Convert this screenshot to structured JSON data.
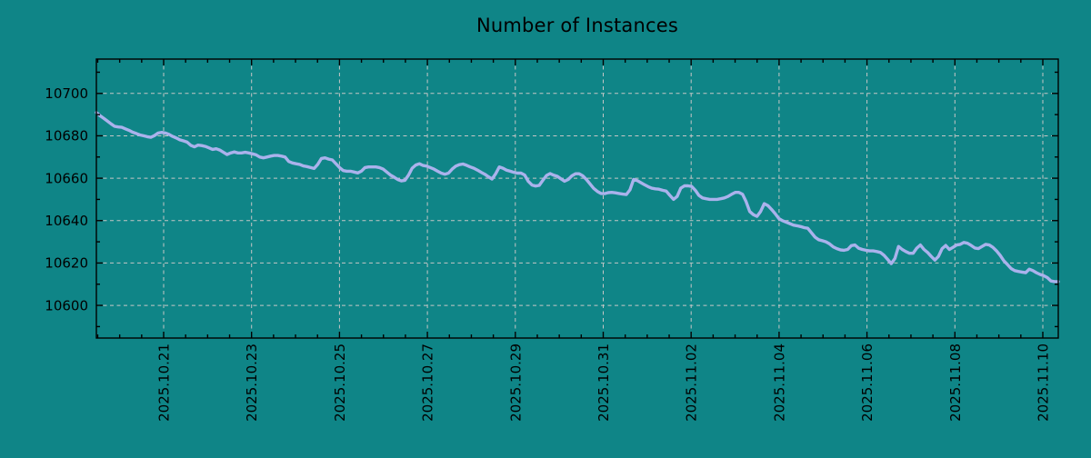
{
  "chart_data": {
    "type": "line",
    "title": "Number of Instances",
    "grid": true,
    "legend": "none",
    "colors": {
      "background": "#0f8587",
      "line": "#aab2ec",
      "grid": "#c6c6c6",
      "axis": "#000000",
      "text": "#000000"
    },
    "x_axis": {
      "tick_labels": [
        "2025.10.21",
        "2025.10.23",
        "2025.10.25",
        "2025.10.27",
        "2025.10.29",
        "2025.10.31",
        "2025.11.02",
        "2025.11.04",
        "2025.11.06",
        "2025.11.08",
        "2025.11.10"
      ],
      "tick_label_rotation_deg": -90,
      "major_tick_interval_days": 2,
      "minor_ticks_per_major": 4,
      "range_note": "data runs from ~2025-10-19 noon to ~2025-11-10 morning, sampled roughly every 2 hours"
    },
    "y_axis": {
      "tick_labels": [
        "10700",
        "10680",
        "10660",
        "10640",
        "10620",
        "10600"
      ],
      "tick_values": [
        10700,
        10680,
        10660,
        10640,
        10620,
        10600
      ],
      "minor_tick_step": 10,
      "range": [
        10584.6,
        10716.2
      ]
    },
    "series": [
      {
        "name": "Number of Instances",
        "values": [
          10691.0,
          10689.5,
          10688.3,
          10687.0,
          10685.7,
          10684.5,
          10684.2,
          10684.0,
          10683.3,
          10682.6,
          10681.7,
          10681.1,
          10680.4,
          10680.0,
          10679.6,
          10679.3,
          10680.1,
          10681.3,
          10681.6,
          10681.3,
          10680.7,
          10679.7,
          10679.0,
          10678.1,
          10677.6,
          10677.0,
          10675.5,
          10674.8,
          10675.6,
          10675.4,
          10675.0,
          10674.3,
          10673.6,
          10673.9,
          10673.3,
          10672.2,
          10671.2,
          10671.9,
          10672.4,
          10671.9,
          10671.9,
          10672.2,
          10671.9,
          10671.5,
          10671.0,
          10670.0,
          10669.6,
          10670.0,
          10670.4,
          10670.7,
          10670.7,
          10670.4,
          10670.0,
          10667.9,
          10667.2,
          10666.8,
          10666.5,
          10665.8,
          10665.5,
          10665.0,
          10664.6,
          10666.5,
          10669.3,
          10669.6,
          10669.0,
          10668.6,
          10666.8,
          10665.0,
          10663.6,
          10663.3,
          10663.3,
          10662.9,
          10662.5,
          10663.3,
          10665.0,
          10665.3,
          10665.3,
          10665.3,
          10665.0,
          10664.3,
          10662.9,
          10661.5,
          10660.5,
          10659.4,
          10658.7,
          10659.0,
          10661.5,
          10664.7,
          10666.2,
          10666.8,
          10666.0,
          10665.7,
          10665.0,
          10664.3,
          10663.3,
          10662.4,
          10661.9,
          10662.4,
          10664.3,
          10665.7,
          10666.4,
          10666.7,
          10666.1,
          10665.3,
          10664.7,
          10663.8,
          10662.8,
          10661.9,
          10660.7,
          10659.6,
          10662.1,
          10665.3,
          10664.7,
          10663.8,
          10663.3,
          10662.8,
          10662.4,
          10662.4,
          10661.5,
          10658.5,
          10656.8,
          10656.3,
          10656.6,
          10659.0,
          10661.3,
          10662.2,
          10661.4,
          10660.9,
          10659.7,
          10658.6,
          10659.4,
          10661.1,
          10662.1,
          10662.1,
          10661.1,
          10659.4,
          10657.3,
          10655.2,
          10653.8,
          10652.8,
          10652.7,
          10653.2,
          10653.3,
          10653.1,
          10652.8,
          10652.5,
          10652.3,
          10654.5,
          10659.4,
          10658.9,
          10657.9,
          10656.9,
          10656.0,
          10655.3,
          10655.0,
          10654.8,
          10654.3,
          10653.9,
          10651.9,
          10650.0,
          10651.4,
          10655.3,
          10656.4,
          10656.4,
          10656.1,
          10654.3,
          10651.9,
          10650.7,
          10650.3,
          10650.0,
          10650.0,
          10650.0,
          10650.3,
          10650.7,
          10651.4,
          10652.4,
          10653.3,
          10653.3,
          10652.4,
          10649.0,
          10644.3,
          10642.8,
          10642.0,
          10644.3,
          10648.0,
          10647.1,
          10645.3,
          10643.3,
          10641.0,
          10640.0,
          10639.3,
          10638.6,
          10637.9,
          10637.6,
          10637.2,
          10636.7,
          10636.4,
          10634.3,
          10632.2,
          10631.0,
          10630.5,
          10630.0,
          10629.0,
          10627.6,
          10626.8,
          10626.2,
          10626.0,
          10626.4,
          10628.2,
          10628.5,
          10627.0,
          10626.4,
          10626.0,
          10625.7,
          10625.7,
          10625.4,
          10625.0,
          10623.6,
          10621.7,
          10619.7,
          10622.1,
          10627.8,
          10626.4,
          10625.4,
          10624.6,
          10624.6,
          10627.0,
          10628.5,
          10626.4,
          10625.0,
          10623.1,
          10621.4,
          10623.1,
          10626.8,
          10628.3,
          10626.4,
          10627.4,
          10628.5,
          10628.8,
          10629.7,
          10629.3,
          10628.3,
          10627.1,
          10626.8,
          10627.8,
          10628.8,
          10628.5,
          10627.4,
          10625.7,
          10623.6,
          10621.1,
          10619.3,
          10617.4,
          10616.4,
          10616.0,
          10615.7,
          10615.4,
          10617.1,
          10616.4,
          10615.4,
          10614.6,
          10614.0,
          10613.1,
          10611.5,
          10611.2,
          10611.2
        ]
      }
    ]
  }
}
